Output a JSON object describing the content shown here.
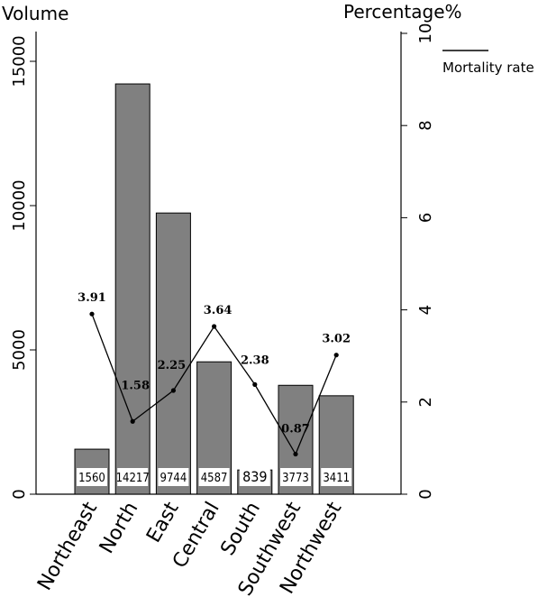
{
  "chart_data": {
    "type": "bar",
    "categories": [
      "Northeast",
      "North",
      "East",
      "Central",
      "South",
      "Southwest",
      "Northwest"
    ],
    "series": [
      {
        "values": [
          1560,
          14217,
          9744,
          4587,
          839,
          3773,
          3411
        ]
      },
      {
        "name": "Mortality rate",
        "type": "line",
        "values": [
          3.91,
          1.58,
          2.25,
          3.64,
          2.38,
          0.87,
          3.02
        ]
      }
    ],
    "title": "",
    "ylabel": "Volume",
    "y2label": "Percentage%",
    "ylim": [
      0,
      16000
    ],
    "y2lim": [
      0,
      10
    ],
    "yticks": [
      "0",
      "5000",
      "10000",
      "15000"
    ],
    "y2ticks": [
      "0",
      "2",
      "4",
      "6",
      "8",
      "10"
    ],
    "bar_labels": [
      "1560",
      "14217",
      "9744",
      "4587",
      "839",
      "3773",
      "3411"
    ],
    "rate_labels": [
      "3.91",
      "1.58",
      "2.25",
      "3.64",
      "2.38",
      "0.87",
      "3.02"
    ],
    "legend": {
      "entries": [
        "Mortality rate"
      ],
      "position": "top-right"
    },
    "grid": false,
    "colors": {
      "bar": "#808080",
      "line": "#000000"
    }
  }
}
